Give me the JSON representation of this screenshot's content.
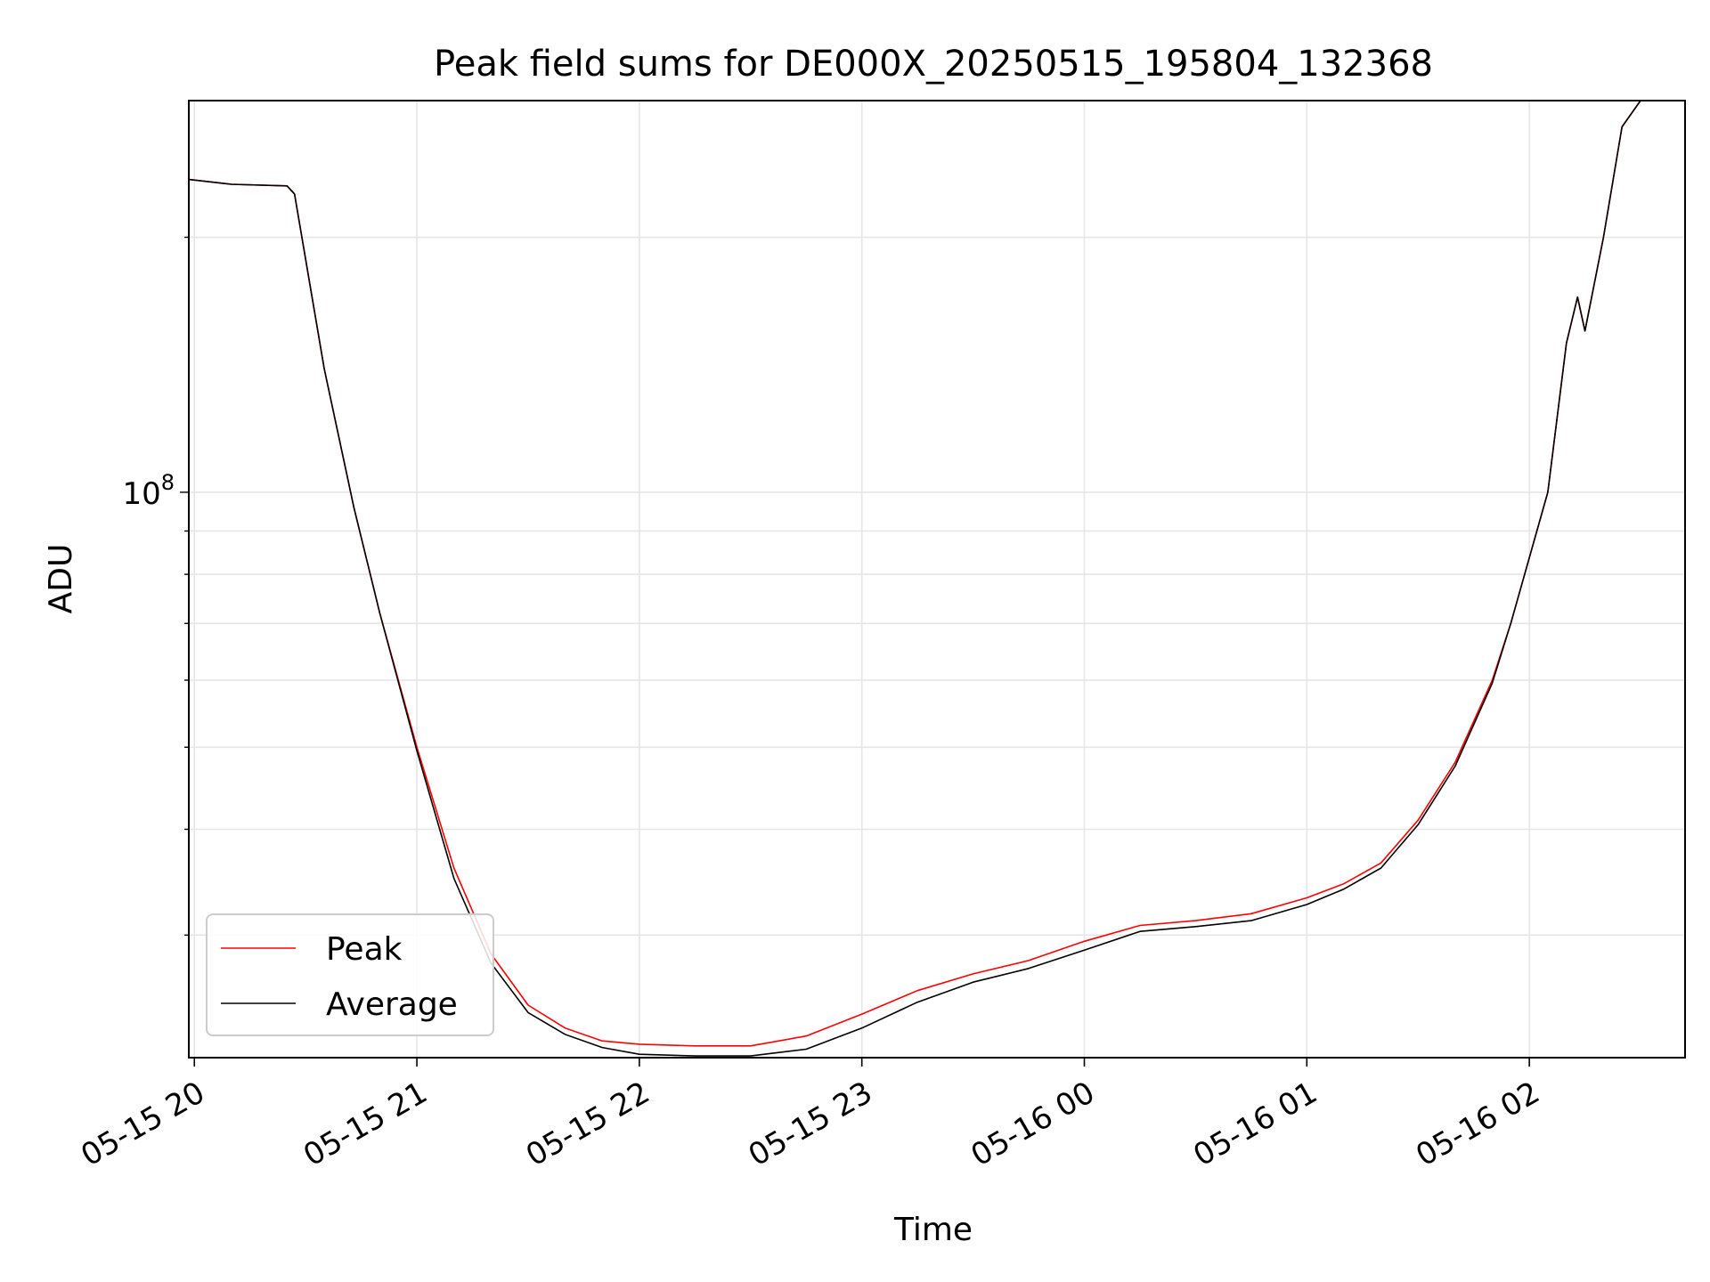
{
  "chart_data": {
    "type": "line",
    "title": "Peak field sums for DE000X_20250515_195804_132368",
    "xlabel": "Time",
    "ylabel": "ADU",
    "y_scale": "log",
    "ylim": [
      21500000,
      290000000
    ],
    "xlim": [
      "2025-05-15 19:58:30",
      "2025-05-16 02:42:00"
    ],
    "grid": true,
    "legend_position": "lower-left",
    "x_ticks": [
      {
        "value": "2025-05-15 20:00",
        "label": "05-15 20"
      },
      {
        "value": "2025-05-15 21:00",
        "label": "05-15 21"
      },
      {
        "value": "2025-05-15 22:00",
        "label": "05-15 22"
      },
      {
        "value": "2025-05-15 23:00",
        "label": "05-15 23"
      },
      {
        "value": "2025-05-16 00:00",
        "label": "05-16 00"
      },
      {
        "value": "2025-05-16 01:00",
        "label": "05-16 01"
      },
      {
        "value": "2025-05-16 02:00",
        "label": "05-16 02"
      }
    ],
    "y_ticks": [
      {
        "value": 100000000,
        "base": "10",
        "exponent": "8"
      }
    ],
    "series": [
      {
        "name": "Peak",
        "color": "#ff0000",
        "x": [
          "2025-05-15 19:58:30",
          "2025-05-15 20:10",
          "2025-05-15 20:25",
          "2025-05-15 20:27",
          "2025-05-15 20:35",
          "2025-05-15 20:43",
          "2025-05-15 20:50",
          "2025-05-15 21:00",
          "2025-05-15 21:10",
          "2025-05-15 21:20",
          "2025-05-15 21:30",
          "2025-05-15 21:40",
          "2025-05-15 21:50",
          "2025-05-15 22:00",
          "2025-05-15 22:15",
          "2025-05-15 22:30",
          "2025-05-15 22:45",
          "2025-05-15 23:00",
          "2025-05-15 23:15",
          "2025-05-15 23:30",
          "2025-05-15 23:45",
          "2025-05-16 00:00",
          "2025-05-16 00:15",
          "2025-05-16 00:30",
          "2025-05-16 00:45",
          "2025-05-16 01:00",
          "2025-05-16 01:10",
          "2025-05-16 01:20",
          "2025-05-16 01:30",
          "2025-05-16 01:40",
          "2025-05-16 01:50",
          "2025-05-16 01:55",
          "2025-05-16 02:05",
          "2025-05-16 02:10",
          "2025-05-16 02:13",
          "2025-05-16 02:15",
          "2025-05-16 02:20",
          "2025-05-16 02:25",
          "2025-05-16 02:30",
          "2025-05-16 02:42"
        ],
        "y": [
          234000000,
          231000000,
          230000000,
          225000000,
          140000000,
          96000000,
          72000000,
          50000000,
          36000000,
          28500000,
          24800000,
          23300000,
          22500000,
          22300000,
          22200000,
          22200000,
          22800000,
          24200000,
          25800000,
          27000000,
          28000000,
          29500000,
          30800000,
          31200000,
          31800000,
          33200000,
          34500000,
          36500000,
          41000000,
          48000000,
          60000000,
          70000000,
          100000000,
          150000000,
          170000000,
          155000000,
          200000000,
          270000000,
          290000000,
          290000000
        ]
      },
      {
        "name": "Average",
        "color": "#000000",
        "x": [
          "2025-05-15 19:58:30",
          "2025-05-15 20:10",
          "2025-05-15 20:25",
          "2025-05-15 20:27",
          "2025-05-15 20:35",
          "2025-05-15 20:43",
          "2025-05-15 20:50",
          "2025-05-15 21:00",
          "2025-05-15 21:10",
          "2025-05-15 21:20",
          "2025-05-15 21:30",
          "2025-05-15 21:40",
          "2025-05-15 21:50",
          "2025-05-15 22:00",
          "2025-05-15 22:15",
          "2025-05-15 22:30",
          "2025-05-15 22:45",
          "2025-05-15 23:00",
          "2025-05-15 23:15",
          "2025-05-15 23:30",
          "2025-05-15 23:45",
          "2025-05-16 00:00",
          "2025-05-16 00:15",
          "2025-05-16 00:30",
          "2025-05-16 00:45",
          "2025-05-16 01:00",
          "2025-05-16 01:10",
          "2025-05-16 01:20",
          "2025-05-16 01:30",
          "2025-05-16 01:40",
          "2025-05-16 01:50",
          "2025-05-16 01:55",
          "2025-05-16 02:05",
          "2025-05-16 02:10",
          "2025-05-16 02:13",
          "2025-05-16 02:15",
          "2025-05-16 02:20",
          "2025-05-16 02:25",
          "2025-05-16 02:30",
          "2025-05-16 02:42"
        ],
        "y": [
          234000000,
          231000000,
          230000000,
          225000000,
          140000000,
          96000000,
          72000000,
          49500000,
          35000000,
          27800000,
          24300000,
          22900000,
          22100000,
          21700000,
          21600000,
          21600000,
          22000000,
          23300000,
          25000000,
          26400000,
          27400000,
          28800000,
          30300000,
          30700000,
          31200000,
          32600000,
          34000000,
          36000000,
          40500000,
          47500000,
          59500000,
          70000000,
          100000000,
          150000000,
          170000000,
          155000000,
          200000000,
          270000000,
          290000000,
          290000000
        ]
      }
    ]
  }
}
